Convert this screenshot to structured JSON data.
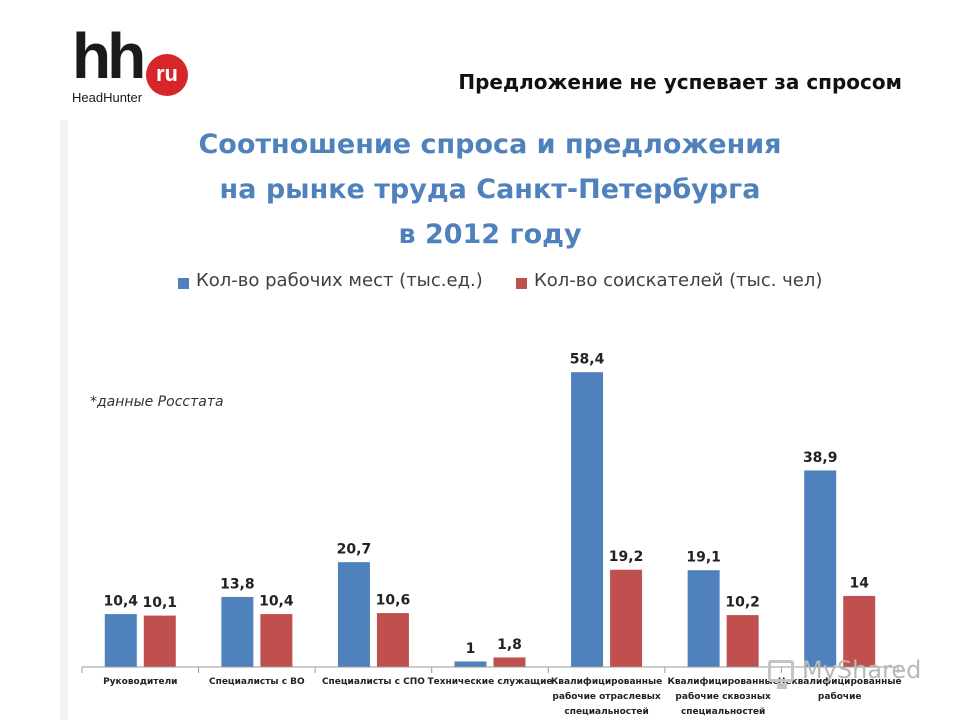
{
  "logo": {
    "hh": "hh",
    "ru": "ru",
    "subtitle": "HeadHunter"
  },
  "headline": "Предложение не успевает за спросом",
  "source_note": "*данные Росстата",
  "watermark": "MyShared",
  "colors": {
    "series1": "#4f81bd",
    "series2": "#c0504d",
    "title": "#4f81bd"
  },
  "chart_data": {
    "type": "bar",
    "title": [
      "Соотношение спроса и предложения",
      "на рынке труда Санкт-Петербурга",
      "в 2012 году"
    ],
    "legend_position": "top",
    "grid": false,
    "ylim": [
      0,
      60
    ],
    "categories": [
      [
        "Руководители"
      ],
      [
        "Специалисты с ВО"
      ],
      [
        "Специалисты с СПО"
      ],
      [
        "Технические служащие"
      ],
      [
        "Квалифицированные",
        "рабочие отраслевых",
        "специальностей"
      ],
      [
        "Квалифицированные",
        "рабочие сквозных",
        "специальностей"
      ],
      [
        "Неквалифицированные",
        "рабочие"
      ]
    ],
    "series": [
      {
        "name": "Кол-во рабочих мест (тыс.ед.)",
        "values": [
          10.4,
          13.8,
          20.7,
          1,
          58.4,
          19.1,
          38.9
        ],
        "labels": [
          "10,4",
          "13,8",
          "20,7",
          "1",
          "58,4",
          "19,1",
          "38,9"
        ]
      },
      {
        "name": "Кол-во соискателей (тыс. чел)",
        "values": [
          10.1,
          10.4,
          10.6,
          1.8,
          19.2,
          10.2,
          14
        ],
        "labels": [
          "10,1",
          "10,4",
          "10,6",
          "1,8",
          "19,2",
          "10,2",
          "14"
        ]
      }
    ]
  }
}
